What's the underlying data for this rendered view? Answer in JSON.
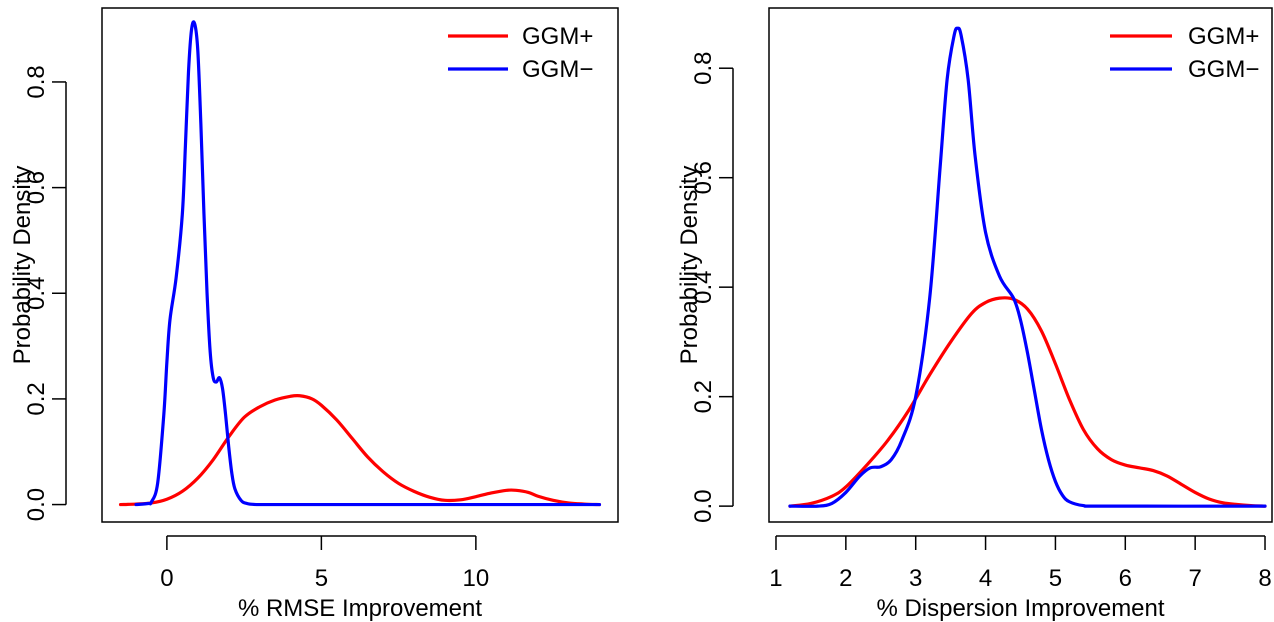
{
  "chart_data": [
    {
      "type": "line",
      "title": "",
      "xlabel": "% RMSE Improvement",
      "ylabel": "Probability Density",
      "xlim": [
        -2.1,
        14.6
      ],
      "ylim": [
        -0.033,
        0.94
      ],
      "xticks": [
        0,
        5,
        10
      ],
      "yticks": [
        0.0,
        0.2,
        0.4,
        0.6,
        0.8
      ],
      "ytick_labels": [
        "0.0",
        "0.2",
        "0.4",
        "0.6",
        "0.8"
      ],
      "grid": false,
      "legend": "top-right",
      "series": [
        {
          "name": "GGM+",
          "color": "#ff0000",
          "x": [
            -1.5,
            -1.0,
            -0.5,
            0.0,
            0.5,
            1.0,
            1.5,
            2.0,
            2.5,
            3.0,
            3.5,
            4.0,
            4.3,
            4.7,
            5.0,
            5.5,
            6.0,
            6.5,
            7.0,
            7.5,
            8.0,
            8.5,
            9.0,
            9.5,
            10.0,
            10.5,
            11.0,
            11.3,
            11.7,
            12.0,
            12.5,
            13.0,
            13.5,
            14.0
          ],
          "y": [
            0.0,
            0.001,
            0.003,
            0.01,
            0.025,
            0.05,
            0.085,
            0.128,
            0.165,
            0.185,
            0.198,
            0.205,
            0.206,
            0.2,
            0.188,
            0.16,
            0.125,
            0.09,
            0.062,
            0.04,
            0.025,
            0.014,
            0.008,
            0.009,
            0.015,
            0.022,
            0.027,
            0.027,
            0.023,
            0.016,
            0.008,
            0.003,
            0.001,
            0.0
          ]
        },
        {
          "name": "GGM−",
          "color": "#0000ff",
          "x": [
            -1.0,
            -0.6,
            -0.5,
            -0.3,
            -0.1,
            0.0,
            0.1,
            0.3,
            0.5,
            0.6,
            0.7,
            0.8,
            0.9,
            1.0,
            1.1,
            1.2,
            1.3,
            1.4,
            1.5,
            1.6,
            1.7,
            1.8,
            1.9,
            2.0,
            2.1,
            2.2,
            2.4,
            2.6,
            3.0,
            5.0,
            10.0,
            14.0
          ],
          "y": [
            0.0,
            0.002,
            0.005,
            0.04,
            0.17,
            0.27,
            0.35,
            0.43,
            0.55,
            0.68,
            0.82,
            0.9,
            0.91,
            0.86,
            0.72,
            0.55,
            0.4,
            0.29,
            0.24,
            0.232,
            0.24,
            0.22,
            0.17,
            0.11,
            0.06,
            0.03,
            0.008,
            0.002,
            0.0,
            0.0,
            0.0,
            0.0
          ]
        }
      ]
    },
    {
      "type": "line",
      "title": "",
      "xlabel": "% Dispersion Improvement",
      "ylabel": "Probability Density",
      "xlim": [
        0.9,
        8.1
      ],
      "ylim": [
        -0.029,
        0.91
      ],
      "xticks": [
        1,
        2,
        3,
        4,
        5,
        6,
        7,
        8
      ],
      "yticks": [
        0.0,
        0.2,
        0.4,
        0.6,
        0.8
      ],
      "ytick_labels": [
        "0.0",
        "0.2",
        "0.4",
        "0.6",
        "0.8"
      ],
      "grid": false,
      "legend": "top-right",
      "series": [
        {
          "name": "GGM+",
          "color": "#ff0000",
          "x": [
            1.2,
            1.5,
            1.8,
            2.0,
            2.3,
            2.6,
            2.9,
            3.2,
            3.5,
            3.8,
            4.0,
            4.2,
            4.4,
            4.6,
            4.8,
            5.0,
            5.2,
            5.4,
            5.6,
            5.8,
            6.0,
            6.2,
            6.4,
            6.6,
            6.8,
            7.0,
            7.2,
            7.4,
            7.6,
            7.8,
            8.0
          ],
          "y": [
            0.0,
            0.005,
            0.018,
            0.035,
            0.075,
            0.12,
            0.175,
            0.24,
            0.3,
            0.352,
            0.372,
            0.38,
            0.378,
            0.36,
            0.32,
            0.26,
            0.195,
            0.14,
            0.105,
            0.085,
            0.075,
            0.07,
            0.065,
            0.055,
            0.04,
            0.025,
            0.013,
            0.006,
            0.003,
            0.001,
            0.0
          ]
        },
        {
          "name": "GGM−",
          "color": "#0000ff",
          "x": [
            1.2,
            1.6,
            1.8,
            2.0,
            2.2,
            2.35,
            2.5,
            2.65,
            2.8,
            3.0,
            3.2,
            3.35,
            3.45,
            3.55,
            3.6,
            3.65,
            3.75,
            3.85,
            4.0,
            4.2,
            4.4,
            4.5,
            4.6,
            4.7,
            4.8,
            4.9,
            5.0,
            5.1,
            5.2,
            5.4,
            5.7,
            8.0
          ],
          "y": [
            0.0,
            0.0,
            0.005,
            0.025,
            0.055,
            0.07,
            0.072,
            0.085,
            0.12,
            0.2,
            0.38,
            0.62,
            0.78,
            0.86,
            0.873,
            0.86,
            0.78,
            0.64,
            0.5,
            0.42,
            0.38,
            0.34,
            0.28,
            0.21,
            0.14,
            0.085,
            0.045,
            0.02,
            0.008,
            0.001,
            0.0,
            0.0
          ]
        }
      ]
    }
  ]
}
